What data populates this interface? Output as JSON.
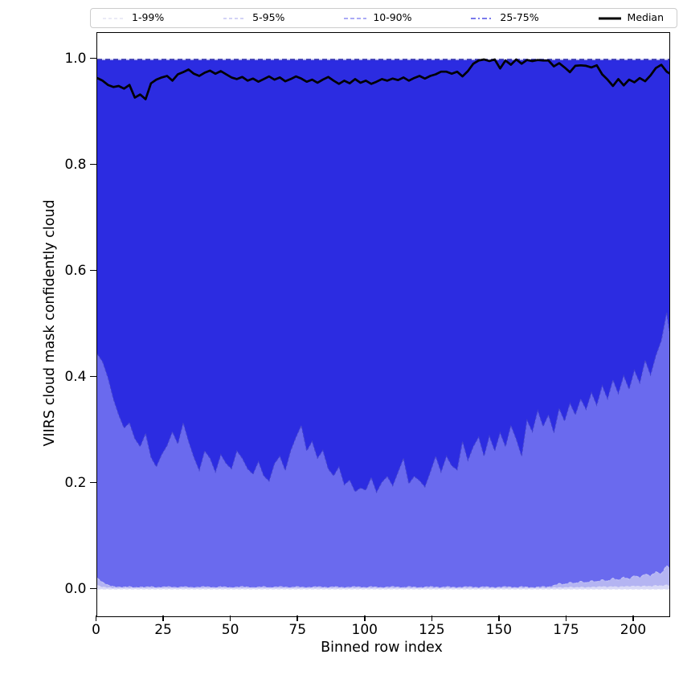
{
  "legend": {
    "items": [
      {
        "label": "1-99%",
        "color": "#d6d6ee",
        "width": 1,
        "dash": "4 3"
      },
      {
        "label": "5-95%",
        "color": "#b9b9f1",
        "width": 1.2,
        "dash": "4 3"
      },
      {
        "label": "10-90%",
        "color": "#8f8ff3",
        "width": 1.4,
        "dash": "5 3"
      },
      {
        "label": "25-75%",
        "color": "#7a7aec",
        "width": 2,
        "dash": "6 3 2 3"
      },
      {
        "label": "Median",
        "color": "#000000",
        "width": 3,
        "dash": ""
      }
    ]
  },
  "axes": {
    "xlabel": "Binned row index",
    "ylabel": "VIIRS cloud mask confidently cloud",
    "xticks": [
      {
        "v": 0,
        "label": "0"
      },
      {
        "v": 25,
        "label": "25"
      },
      {
        "v": 50,
        "label": "50"
      },
      {
        "v": 75,
        "label": "75"
      },
      {
        "v": 100,
        "label": "100"
      },
      {
        "v": 125,
        "label": "125"
      },
      {
        "v": 150,
        "label": "150"
      },
      {
        "v": 175,
        "label": "175"
      },
      {
        "v": 200,
        "label": "200"
      }
    ],
    "yticks": [
      {
        "v": 0.0,
        "label": "0.0"
      },
      {
        "v": 0.2,
        "label": "0.2"
      },
      {
        "v": 0.4,
        "label": "0.4"
      },
      {
        "v": 0.6,
        "label": "0.6"
      },
      {
        "v": 0.8,
        "label": "0.8"
      },
      {
        "v": 1.0,
        "label": "1.0"
      }
    ]
  },
  "chart_data": {
    "type": "area",
    "title": "",
    "xlabel": "Binned row index",
    "ylabel": "VIIRS cloud mask confidently cloud",
    "xlim": [
      0,
      213
    ],
    "ylim": [
      -0.05,
      1.05
    ],
    "legend_position": "top, horizontal, outside axes",
    "grid": false,
    "x": [
      0,
      2,
      4,
      6,
      8,
      10,
      12,
      14,
      16,
      18,
      20,
      22,
      24,
      26,
      28,
      30,
      32,
      34,
      36,
      38,
      40,
      42,
      44,
      46,
      48,
      50,
      52,
      54,
      56,
      58,
      60,
      62,
      64,
      66,
      68,
      70,
      72,
      74,
      76,
      78,
      80,
      82,
      84,
      86,
      88,
      90,
      92,
      94,
      96,
      98,
      100,
      102,
      104,
      106,
      108,
      110,
      112,
      114,
      116,
      118,
      120,
      122,
      124,
      126,
      128,
      130,
      132,
      134,
      136,
      138,
      140,
      142,
      144,
      146,
      148,
      150,
      152,
      154,
      156,
      158,
      160,
      162,
      164,
      166,
      168,
      170,
      172,
      174,
      176,
      178,
      180,
      182,
      184,
      186,
      188,
      190,
      192,
      194,
      196,
      198,
      200,
      202,
      204,
      206,
      208,
      210,
      212,
      213
    ],
    "median": [
      0.965,
      0.96,
      0.952,
      0.948,
      0.95,
      0.945,
      0.952,
      0.928,
      0.934,
      0.925,
      0.955,
      0.962,
      0.966,
      0.969,
      0.96,
      0.972,
      0.976,
      0.981,
      0.973,
      0.969,
      0.975,
      0.979,
      0.973,
      0.978,
      0.972,
      0.966,
      0.963,
      0.967,
      0.96,
      0.964,
      0.958,
      0.963,
      0.968,
      0.962,
      0.966,
      0.959,
      0.963,
      0.968,
      0.964,
      0.958,
      0.962,
      0.956,
      0.962,
      0.967,
      0.96,
      0.954,
      0.96,
      0.955,
      0.963,
      0.956,
      0.96,
      0.954,
      0.958,
      0.963,
      0.96,
      0.964,
      0.961,
      0.966,
      0.96,
      0.965,
      0.969,
      0.964,
      0.969,
      0.972,
      0.977,
      0.977,
      0.973,
      0.977,
      0.968,
      0.978,
      0.992,
      0.998,
      1.0,
      0.997,
      1.0,
      0.983,
      0.998,
      0.99,
      1.0,
      0.992,
      0.999,
      0.997,
      0.999,
      0.998,
      0.998,
      0.987,
      0.993,
      0.985,
      0.976,
      0.988,
      0.989,
      0.988,
      0.985,
      0.989,
      0.972,
      0.962,
      0.95,
      0.963,
      0.951,
      0.962,
      0.957,
      0.965,
      0.959,
      0.97,
      0.984,
      0.99,
      0.977,
      0.974
    ],
    "p25": [
      0.445,
      0.43,
      0.4,
      0.36,
      0.33,
      0.305,
      0.315,
      0.285,
      0.27,
      0.295,
      0.25,
      0.232,
      0.255,
      0.272,
      0.298,
      0.275,
      0.315,
      0.28,
      0.25,
      0.225,
      0.262,
      0.248,
      0.222,
      0.255,
      0.238,
      0.228,
      0.262,
      0.248,
      0.228,
      0.218,
      0.242,
      0.215,
      0.205,
      0.238,
      0.252,
      0.225,
      0.262,
      0.288,
      0.31,
      0.262,
      0.28,
      0.248,
      0.263,
      0.228,
      0.215,
      0.232,
      0.198,
      0.207,
      0.185,
      0.192,
      0.188,
      0.212,
      0.184,
      0.203,
      0.214,
      0.196,
      0.222,
      0.248,
      0.2,
      0.214,
      0.206,
      0.194,
      0.222,
      0.252,
      0.222,
      0.252,
      0.234,
      0.226,
      0.28,
      0.244,
      0.27,
      0.288,
      0.252,
      0.29,
      0.262,
      0.296,
      0.27,
      0.31,
      0.284,
      0.252,
      0.32,
      0.298,
      0.338,
      0.308,
      0.33,
      0.296,
      0.342,
      0.318,
      0.352,
      0.33,
      0.36,
      0.34,
      0.372,
      0.348,
      0.385,
      0.36,
      0.396,
      0.37,
      0.404,
      0.378,
      0.414,
      0.39,
      0.433,
      0.405,
      0.442,
      0.47,
      0.523,
      0.488
    ],
    "p10": [
      0.022,
      0.014,
      0.009,
      0.006,
      0.005,
      0.005,
      0.006,
      0.004,
      0.005,
      0.005,
      0.006,
      0.004,
      0.005,
      0.006,
      0.005,
      0.004,
      0.006,
      0.005,
      0.004,
      0.005,
      0.006,
      0.005,
      0.004,
      0.006,
      0.005,
      0.004,
      0.005,
      0.006,
      0.005,
      0.004,
      0.005,
      0.006,
      0.004,
      0.005,
      0.006,
      0.005,
      0.004,
      0.006,
      0.005,
      0.004,
      0.005,
      0.006,
      0.005,
      0.004,
      0.006,
      0.005,
      0.004,
      0.005,
      0.006,
      0.005,
      0.004,
      0.006,
      0.005,
      0.004,
      0.005,
      0.006,
      0.005,
      0.004,
      0.006,
      0.005,
      0.004,
      0.005,
      0.006,
      0.005,
      0.004,
      0.006,
      0.005,
      0.004,
      0.005,
      0.006,
      0.005,
      0.004,
      0.006,
      0.005,
      0.004,
      0.005,
      0.006,
      0.005,
      0.004,
      0.006,
      0.005,
      0.004,
      0.005,
      0.006,
      0.005,
      0.008,
      0.012,
      0.01,
      0.014,
      0.012,
      0.016,
      0.013,
      0.017,
      0.015,
      0.019,
      0.016,
      0.022,
      0.018,
      0.024,
      0.02,
      0.027,
      0.023,
      0.03,
      0.026,
      0.034,
      0.03,
      0.046,
      0.04
    ],
    "p5": [
      0.008,
      0.005,
      0.004,
      0.003,
      0.003,
      0.003,
      0.003,
      0.003,
      0.003,
      0.003,
      0.003,
      0.003,
      0.003,
      0.003,
      0.003,
      0.003,
      0.003,
      0.003,
      0.003,
      0.003,
      0.003,
      0.003,
      0.003,
      0.003,
      0.003,
      0.003,
      0.003,
      0.003,
      0.003,
      0.003,
      0.003,
      0.003,
      0.003,
      0.003,
      0.003,
      0.003,
      0.003,
      0.003,
      0.003,
      0.003,
      0.003,
      0.003,
      0.003,
      0.003,
      0.003,
      0.003,
      0.003,
      0.003,
      0.003,
      0.003,
      0.003,
      0.003,
      0.003,
      0.003,
      0.003,
      0.003,
      0.003,
      0.003,
      0.003,
      0.003,
      0.003,
      0.003,
      0.003,
      0.003,
      0.003,
      0.003,
      0.003,
      0.003,
      0.003,
      0.003,
      0.003,
      0.003,
      0.003,
      0.003,
      0.003,
      0.003,
      0.003,
      0.003,
      0.003,
      0.003,
      0.003,
      0.003,
      0.003,
      0.003,
      0.003,
      0.004,
      0.004,
      0.004,
      0.005,
      0.004,
      0.005,
      0.004,
      0.005,
      0.005,
      0.006,
      0.005,
      0.006,
      0.005,
      0.006,
      0.006,
      0.007,
      0.006,
      0.007,
      0.006,
      0.008,
      0.007,
      0.009,
      0.008
    ],
    "p1": [
      0.001,
      0.001,
      0.001,
      0.001,
      0.001,
      0.001,
      0.001,
      0.001,
      0.001,
      0.001,
      0.001,
      0.001,
      0.001,
      0.001,
      0.001,
      0.001,
      0.001,
      0.001,
      0.001,
      0.001,
      0.001,
      0.001,
      0.001,
      0.001,
      0.001,
      0.001,
      0.001,
      0.001,
      0.001,
      0.001,
      0.001,
      0.001,
      0.001,
      0.001,
      0.001,
      0.001,
      0.001,
      0.001,
      0.001,
      0.001,
      0.001,
      0.001,
      0.001,
      0.001,
      0.001,
      0.001,
      0.001,
      0.001,
      0.001,
      0.001,
      0.001,
      0.001,
      0.001,
      0.001,
      0.001,
      0.001,
      0.001,
      0.001,
      0.001,
      0.001,
      0.001,
      0.001,
      0.001,
      0.001,
      0.001,
      0.001,
      0.001,
      0.001,
      0.001,
      0.001,
      0.001,
      0.001,
      0.001,
      0.001,
      0.001,
      0.001,
      0.001,
      0.001,
      0.001,
      0.001,
      0.001,
      0.001,
      0.001,
      0.001,
      0.001,
      0.001,
      0.001,
      0.001,
      0.001,
      0.001,
      0.001,
      0.001,
      0.001,
      0.001,
      0.001,
      0.001,
      0.001,
      0.001,
      0.001,
      0.001,
      0.001,
      0.001,
      0.001,
      0.001,
      0.001,
      0.001,
      0.001,
      0.001
    ],
    "p75": 1.0,
    "p90": 1.0,
    "p95": 1.0,
    "p99": 1.0,
    "bands": [
      {
        "name": "1-99%",
        "lower": "p1",
        "upper": "p99",
        "fill": "#d9d9f7",
        "edge": "#e2e2f8",
        "edge_width": 1.1,
        "edge_dash": "4 3"
      },
      {
        "name": "5-95%",
        "lower": "p5",
        "upper": "p95",
        "fill": "#b4b4f2",
        "edge": "#dcdcf6",
        "edge_width": 1.2,
        "edge_dash": "4 3"
      },
      {
        "name": "10-90%",
        "lower": "p10",
        "upper": "p90",
        "fill": "#6a6aee",
        "edge": "#c3c3f4",
        "edge_width": 1.1,
        "edge_dash": "4 3"
      },
      {
        "name": "25-75%",
        "lower": "p25",
        "upper": "p75",
        "fill": "#2c2ce1",
        "edge": "#4444cc",
        "edge_width": 1.1,
        "edge_dash": "3 2.5"
      }
    ],
    "colors": {
      "median_line": "#000000",
      "top_edge_dashes": "#2626a8",
      "top_edge_underlay": "#cfcff4",
      "spine": "#000000",
      "tick": "#000000"
    },
    "median_line_width": 2.7
  }
}
